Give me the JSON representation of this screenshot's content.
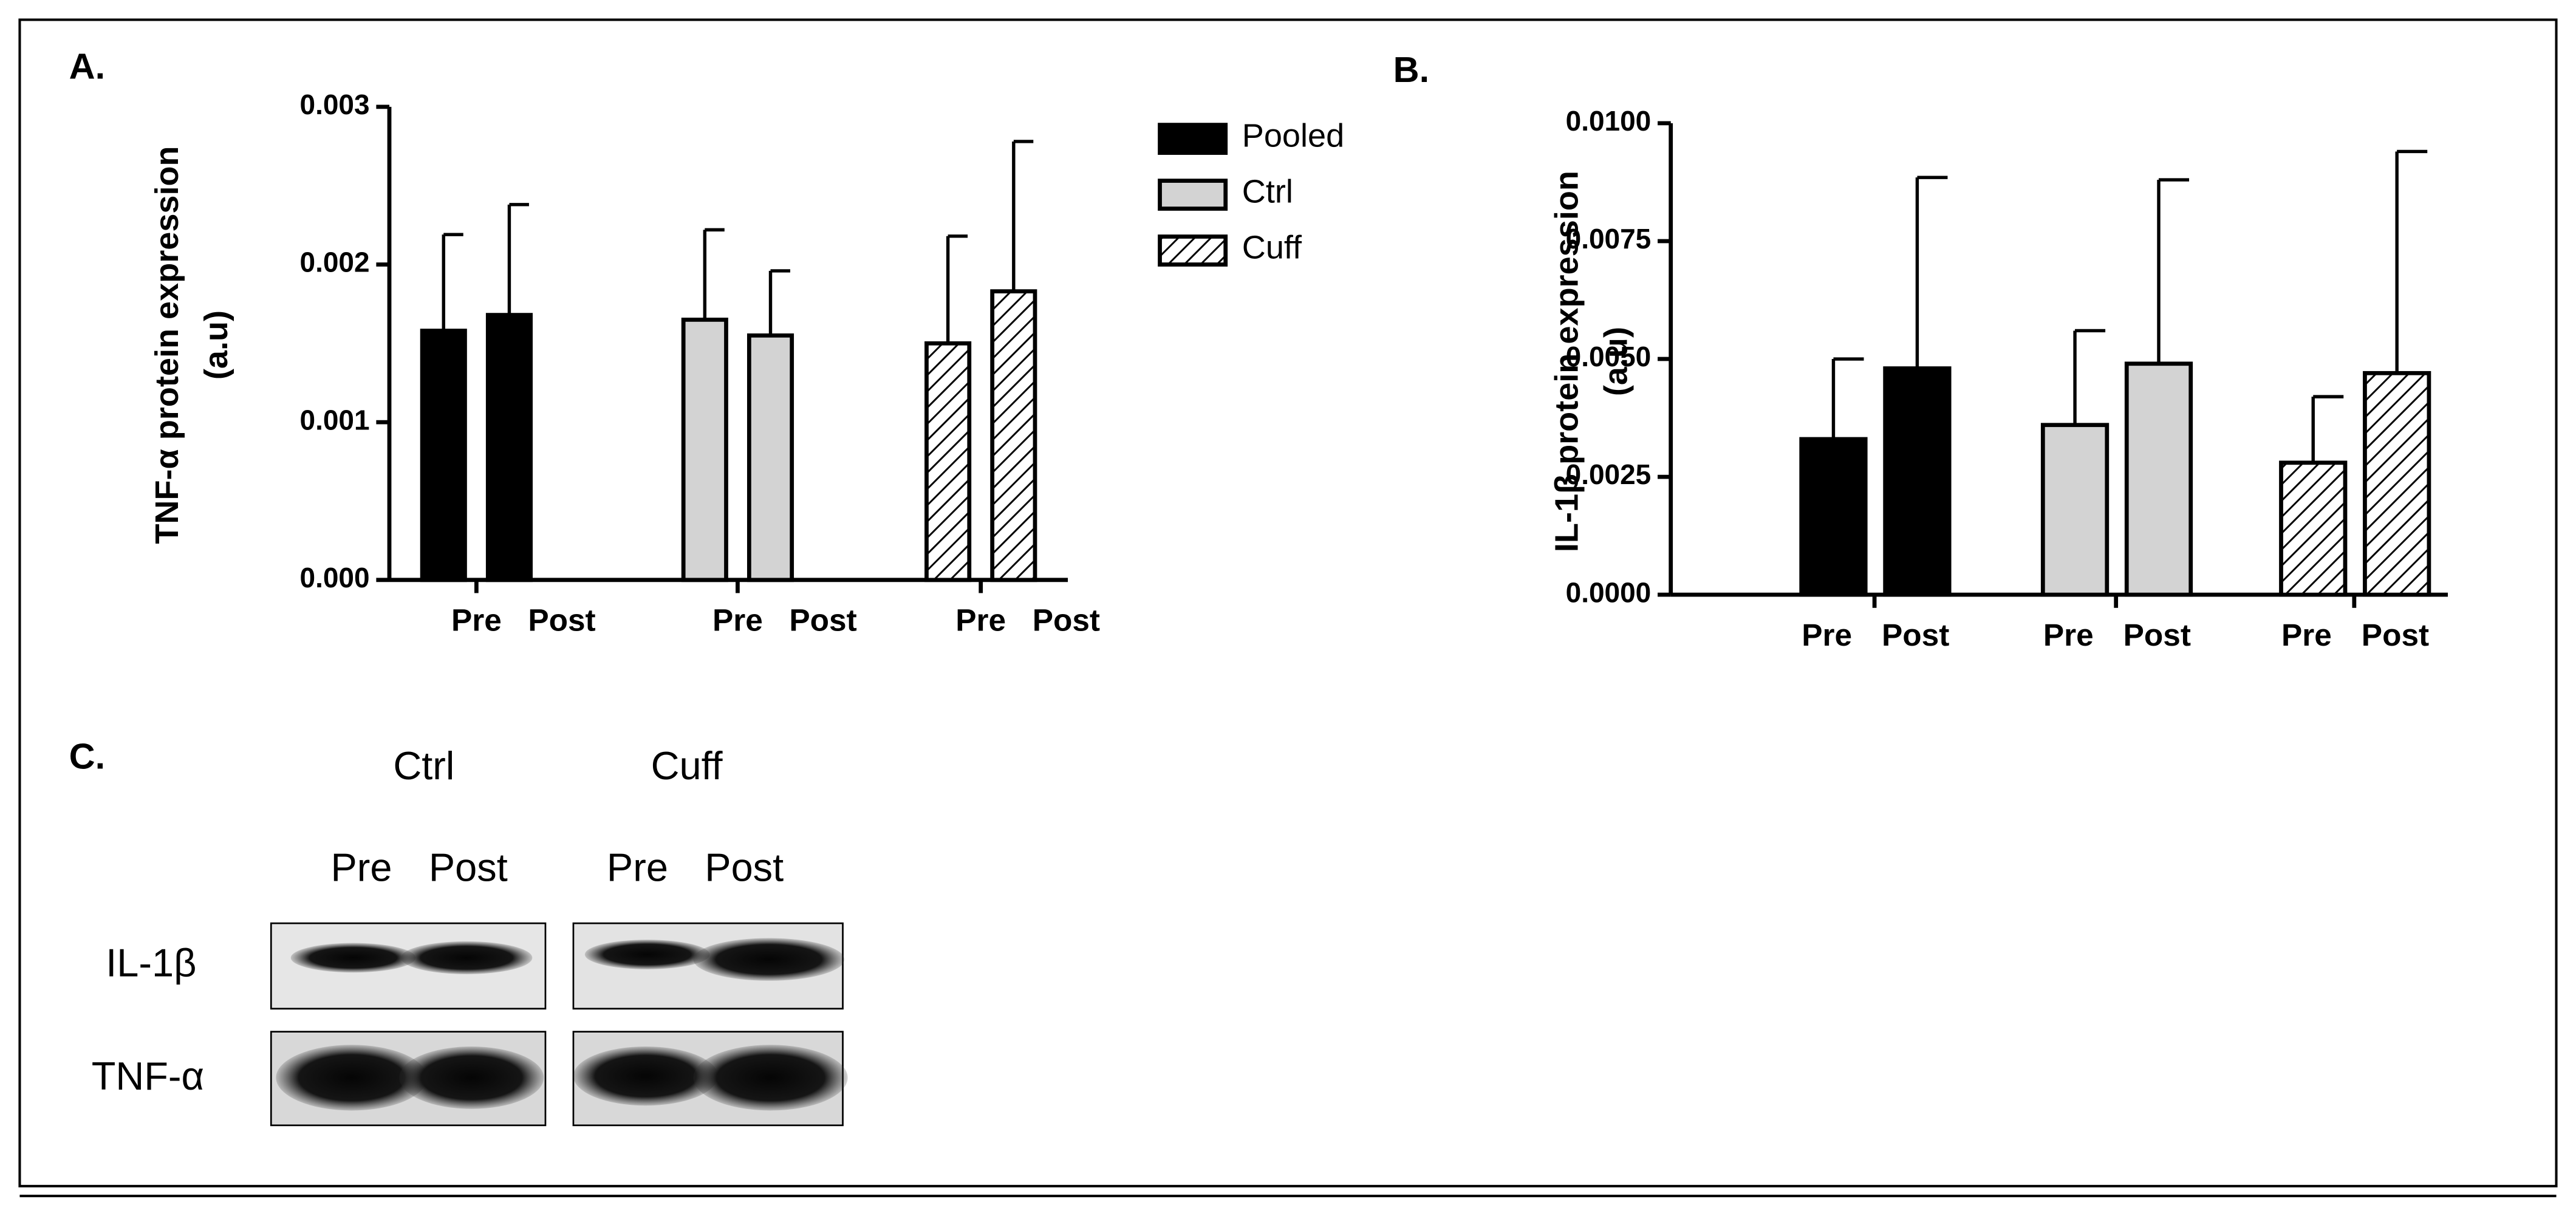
{
  "chart_data": [
    {
      "type": "bar",
      "panel_label": "A.",
      "ylabel": [
        "TNF-α protein expression",
        "(a.u)"
      ],
      "categories": [
        "Pre",
        "Post"
      ],
      "series": [
        {
          "name": "Pooled",
          "color": "#000000",
          "values": [
            0.00158,
            0.00168
          ],
          "errors": [
            0.00061,
            0.0007
          ]
        },
        {
          "name": "Ctrl",
          "color": "#d3d3d3",
          "values": [
            0.00165,
            0.00155
          ],
          "errors": [
            0.00057,
            0.00041
          ]
        },
        {
          "name": "Cuff",
          "color": "#ffffff",
          "pattern": "hatch",
          "values": [
            0.0015,
            0.00183
          ],
          "errors": [
            0.00068,
            0.00095
          ]
        }
      ],
      "ylim": [
        0,
        0.003
      ],
      "yticks": [
        {
          "value": 0,
          "label": "0.000"
        },
        0.001,
        0.002,
        0.003
      ],
      "legend": "upper right"
    },
    {
      "type": "bar",
      "panel_label": "B.",
      "ylabel": [
        "IL-1β protein expression",
        "(a.u)"
      ],
      "categories": [
        "Pre",
        "Post"
      ],
      "series": [
        {
          "color": "#000000",
          "values": [
            0.0033,
            0.0048
          ],
          "errors": [
            0.0017,
            0.00405
          ]
        },
        {
          "color": "#d3d3d3",
          "values": [
            0.0036,
            0.0049
          ],
          "errors": [
            0.002,
            0.0039
          ]
        },
        {
          "color": "#ffffff",
          "pattern": "hatch",
          "values": [
            0.0028,
            0.0047
          ],
          "errors": [
            0.0014,
            0.0047
          ]
        }
      ],
      "ylim": [
        0,
        0.01
      ],
      "yticks": [
        {
          "value": 0,
          "label": "0.0000"
        },
        0.0025,
        {
          "value": 0.005,
          "label": "0.0050"
        },
        0.0075,
        {
          "value": 0.01,
          "label": "0.0100"
        }
      ]
    }
  ],
  "blot": {
    "panel_label": "C.",
    "groups": [
      "Ctrl",
      "Cuff"
    ],
    "lanes": [
      "Pre",
      "Post"
    ],
    "rows": [
      "IL-1β",
      "TNF-α"
    ]
  }
}
